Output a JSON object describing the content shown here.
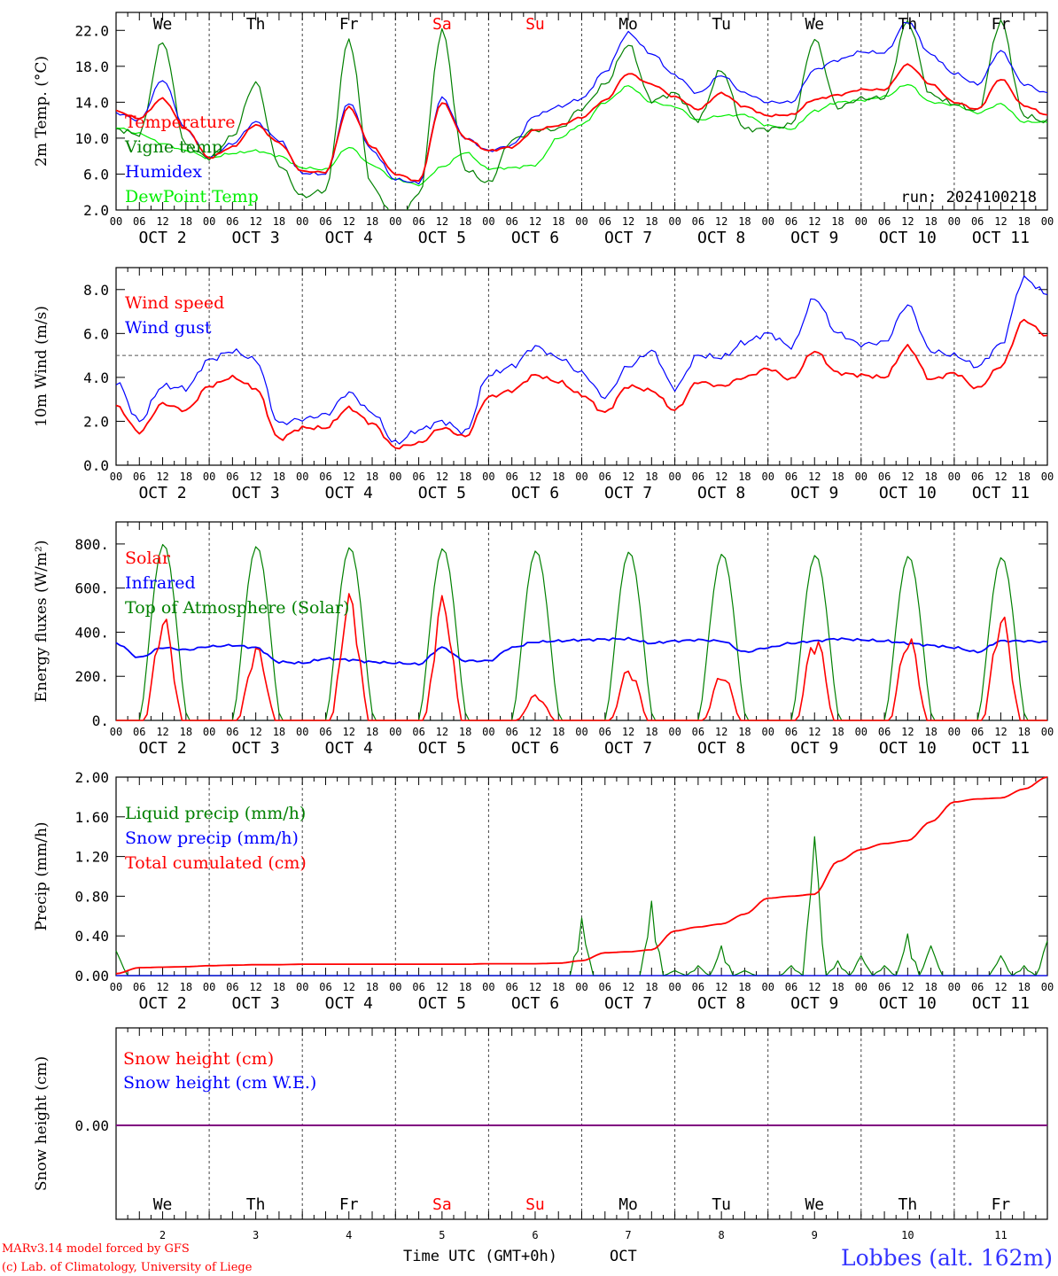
{
  "colors": {
    "red": "#ff0000",
    "green": "#008000",
    "blue": "#0000ff",
    "lightgreen": "#00ee00",
    "purple": "#800080",
    "axis": "#000000",
    "grid": "#444444",
    "station": "#3333ff"
  },
  "days": [
    "We",
    "Th",
    "Fr",
    "Sa",
    "Su",
    "Mo",
    "Tu",
    "We",
    "Th",
    "Fr"
  ],
  "weekend_days": [
    "Sa",
    "Su"
  ],
  "hour_ticks": [
    "00",
    "06",
    "12",
    "18"
  ],
  "hour_ticks_end": "00",
  "date_labels": [
    "OCT  2",
    "OCT  3",
    "OCT  4",
    "OCT  5",
    "OCT  6",
    "OCT  7",
    "OCT  8",
    "OCT  9",
    "OCT 10",
    "OCT 11"
  ],
  "day_numbers": [
    "2",
    "3",
    "4",
    "5",
    "6",
    "7",
    "8",
    "9",
    "10",
    "11"
  ],
  "footer": {
    "model": "MARv3.14 model forced by GFS",
    "credit": "(c) Lab. of Climatology, University of Liege",
    "axis_title": "Time UTC (GMT+0h)",
    "month": "OCT",
    "station": "Lobbes (alt. 162m)"
  },
  "chart_data": [
    {
      "id": "temperature",
      "type": "line",
      "ylabel": "2m Temp. (°C)",
      "ylim": [
        2.0,
        24.0
      ],
      "yticks": [
        "2.0",
        "6.0",
        "10.0",
        "14.0",
        "18.0",
        "22.0"
      ],
      "annotation": "run: 2024100218",
      "x": "hours since 02 OCT 00 UTC (6-hourly), 0..240",
      "series": [
        {
          "name": "Temperature",
          "color": "#ff0000",
          "values": [
            13.0,
            12.2,
            14.4,
            11.0,
            7.8,
            9.0,
            11.5,
            9.5,
            6.3,
            6.2,
            13.5,
            9.0,
            6.0,
            5.2,
            14.0,
            10.0,
            8.6,
            9.0,
            10.9,
            11.4,
            12.3,
            14.2,
            17.2,
            16.0,
            14.6,
            13.2,
            15.0,
            13.5,
            12.5,
            12.6,
            14.3,
            14.8,
            15.4,
            15.4,
            18.2,
            16.0,
            14.0,
            13.2,
            16.6,
            13.6,
            12.6
          ]
        },
        {
          "name": "Vigne temp",
          "color": "#008000",
          "values": [
            11.0,
            10.4,
            20.8,
            9.2,
            7.8,
            10.2,
            16.2,
            7.0,
            3.5,
            4.2,
            21.0,
            4.6,
            0.9,
            3.6,
            22.0,
            6.5,
            5.0,
            9.8,
            10.9,
            11.0,
            13.3,
            16.0,
            20.4,
            14.2,
            15.0,
            12.0,
            17.6,
            11.0,
            11.0,
            11.5,
            21.0,
            13.4,
            14.4,
            14.5,
            23.0,
            14.8,
            13.8,
            13.0,
            23.0,
            12.5,
            11.8
          ]
        },
        {
          "name": "Humidex",
          "color": "#0000ff",
          "values": [
            12.8,
            12.0,
            16.5,
            11.0,
            7.8,
            9.4,
            11.8,
            9.8,
            6.1,
            6.0,
            14.0,
            8.6,
            5.4,
            5.0,
            14.5,
            10.0,
            8.6,
            9.2,
            12.5,
            13.5,
            14.4,
            17.4,
            21.7,
            19.4,
            17.0,
            15.0,
            17.0,
            15.0,
            14.0,
            14.0,
            17.6,
            18.7,
            19.6,
            19.5,
            23.0,
            19.3,
            17.2,
            16.0,
            19.7,
            16.0,
            15.0
          ]
        },
        {
          "name": "DewPoint Temp",
          "color": "#00ee00",
          "values": [
            11.2,
            10.5,
            9.4,
            8.6,
            7.8,
            8.3,
            8.6,
            8.0,
            6.7,
            6.5,
            9.0,
            7.0,
            5.4,
            4.8,
            6.8,
            8.4,
            6.6,
            6.7,
            7.0,
            10.0,
            11.5,
            14.0,
            15.8,
            14.0,
            13.5,
            12.0,
            12.5,
            12.6,
            11.4,
            11.0,
            13.0,
            14.0,
            14.2,
            14.6,
            16.0,
            14.0,
            13.7,
            12.8,
            13.8,
            11.8,
            11.8
          ]
        }
      ]
    },
    {
      "id": "wind",
      "type": "line",
      "ylabel": "10m Wind (m/s)",
      "ylim": [
        0.0,
        9.0
      ],
      "yticks": [
        "0.0",
        "2.0",
        "4.0",
        "6.0",
        "8.0"
      ],
      "reference_line": 5.0,
      "series": [
        {
          "name": "Wind speed",
          "color": "#ff0000",
          "values": [
            2.7,
            1.5,
            2.8,
            2.5,
            3.6,
            4.0,
            3.5,
            1.2,
            1.7,
            1.7,
            2.6,
            1.9,
            0.8,
            1.0,
            1.7,
            1.3,
            3.1,
            3.4,
            4.1,
            3.8,
            3.2,
            2.4,
            3.6,
            3.4,
            2.5,
            3.8,
            3.6,
            4.0,
            4.4,
            3.9,
            5.2,
            4.2,
            4.1,
            4.0,
            5.4,
            3.9,
            4.2,
            3.5,
            4.5,
            6.6,
            5.9
          ]
        },
        {
          "name": "Wind gust",
          "color": "#0000ff",
          "values": [
            3.8,
            2.0,
            3.6,
            3.5,
            4.8,
            5.2,
            4.8,
            1.9,
            2.1,
            2.3,
            3.3,
            2.4,
            1.0,
            1.6,
            2.0,
            1.5,
            4.1,
            4.5,
            5.4,
            4.9,
            4.2,
            3.1,
            4.5,
            5.2,
            3.5,
            5.0,
            4.9,
            5.6,
            6.0,
            5.4,
            7.6,
            6.0,
            5.5,
            5.6,
            7.3,
            5.2,
            5.0,
            4.5,
            5.5,
            8.5,
            7.8
          ]
        }
      ]
    },
    {
      "id": "energy",
      "type": "line",
      "ylabel": "Energy fluxes (W/m²)",
      "ylim": [
        0,
        900
      ],
      "yticks": [
        "0.",
        "200.",
        "400.",
        "600.",
        "800."
      ],
      "series": [
        {
          "name": "Solar",
          "color": "#ff0000",
          "peaks": [
            480,
            340,
            580,
            570,
            120,
            245,
            220,
            400,
            395,
            490
          ]
        },
        {
          "name": "Infrared",
          "color": "#0000ff",
          "values": [
            350,
            285,
            330,
            320,
            335,
            340,
            330,
            265,
            260,
            280,
            275,
            265,
            260,
            255,
            330,
            270,
            270,
            330,
            355,
            360,
            365,
            368,
            370,
            350,
            360,
            365,
            360,
            310,
            330,
            350,
            360,
            370,
            365,
            360,
            350,
            340,
            330,
            310,
            360,
            360,
            355
          ]
        },
        {
          "name": "Top of Atmosphere (Solar)",
          "color": "#008000",
          "peaks": [
            800,
            790,
            785,
            780,
            770,
            765,
            755,
            750,
            745,
            740
          ]
        }
      ]
    },
    {
      "id": "precip",
      "type": "line",
      "ylabel": "Precip (mm/h)",
      "ylim": [
        0.0,
        2.0
      ],
      "yticks": [
        "0.00",
        "0.40",
        "0.80",
        "1.20",
        "1.60",
        "2.00"
      ],
      "series": [
        {
          "name": "Liquid precip (mm/h)",
          "color": "#008000",
          "values": [
            0.25,
            0.0,
            0.0,
            0.0,
            0.0,
            0.0,
            0.0,
            0.0,
            0.0,
            0.0,
            0.0,
            0.0,
            0.0,
            0.0,
            0.0,
            0.0,
            0.0,
            0.0,
            0.0,
            0.0,
            0.58,
            0.0,
            0.0,
            0.75,
            0.05,
            0.1,
            0.3,
            0.05,
            0.0,
            0.1,
            1.4,
            0.15,
            0.2,
            0.1,
            0.42,
            0.3,
            0.0,
            0.0,
            0.2,
            0.1,
            0.35
          ]
        },
        {
          "name": "Snow precip (mm/h)",
          "color": "#0000ff",
          "values": [
            0,
            0,
            0,
            0,
            0,
            0,
            0,
            0,
            0,
            0,
            0,
            0,
            0,
            0,
            0,
            0,
            0,
            0,
            0,
            0,
            0,
            0,
            0,
            0,
            0,
            0,
            0,
            0,
            0,
            0,
            0,
            0,
            0,
            0,
            0,
            0,
            0,
            0,
            0,
            0,
            0
          ]
        },
        {
          "name": "Total cumulated (cm)",
          "color": "#ff0000",
          "values": [
            0.02,
            0.08,
            0.085,
            0.09,
            0.1,
            0.105,
            0.11,
            0.11,
            0.115,
            0.115,
            0.115,
            0.115,
            0.115,
            0.115,
            0.115,
            0.115,
            0.12,
            0.12,
            0.12,
            0.125,
            0.15,
            0.23,
            0.24,
            0.26,
            0.45,
            0.49,
            0.52,
            0.62,
            0.78,
            0.8,
            0.82,
            1.15,
            1.27,
            1.33,
            1.36,
            1.55,
            1.75,
            1.78,
            1.79,
            1.88,
            2.0
          ]
        }
      ]
    },
    {
      "id": "snow",
      "type": "line",
      "ylabel": "Snow height (cm)",
      "yticks": [
        "0.00"
      ],
      "series": [
        {
          "name": "Snow height (cm)",
          "color": "#ff0000",
          "values": [
            0,
            0
          ]
        },
        {
          "name": "Snow height (cm W.E.)",
          "color": "#0000ff",
          "values": [
            0,
            0
          ]
        }
      ]
    }
  ]
}
